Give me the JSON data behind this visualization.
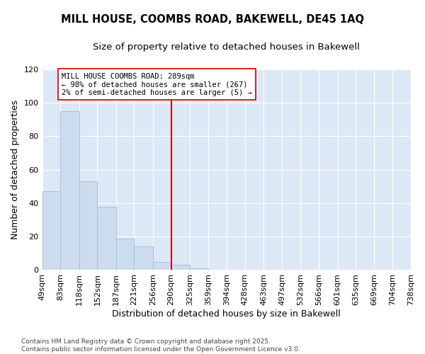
{
  "title": "MILL HOUSE, COOMBS ROAD, BAKEWELL, DE45 1AQ",
  "subtitle": "Size of property relative to detached houses in Bakewell",
  "xlabel": "Distribution of detached houses by size in Bakewell",
  "ylabel": "Number of detached properties",
  "bin_labels": [
    "49sqm",
    "83sqm",
    "118sqm",
    "152sqm",
    "187sqm",
    "221sqm",
    "256sqm",
    "290sqm",
    "325sqm",
    "359sqm",
    "394sqm",
    "428sqm",
    "463sqm",
    "497sqm",
    "532sqm",
    "566sqm",
    "601sqm",
    "635sqm",
    "669sqm",
    "704sqm",
    "738sqm"
  ],
  "bin_edges": [
    49,
    83,
    118,
    152,
    187,
    221,
    256,
    290,
    325,
    359,
    394,
    428,
    463,
    497,
    532,
    566,
    601,
    635,
    669,
    704,
    738
  ],
  "counts": [
    47,
    95,
    53,
    38,
    19,
    14,
    5,
    3,
    1,
    0,
    0,
    0,
    0,
    0,
    0,
    0,
    0,
    0,
    0,
    0
  ],
  "bar_color": "#ccdcee",
  "bar_edge_color": "#a0bcd8",
  "vline_x": 290,
  "vline_color": "#cc0000",
  "ylim": [
    0,
    120
  ],
  "yticks": [
    0,
    20,
    40,
    60,
    80,
    100,
    120
  ],
  "annotation_text": "MILL HOUSE COOMBS ROAD: 289sqm\n← 98% of detached houses are smaller (267)\n2% of semi-detached houses are larger (5) →",
  "annotation_box_color": "#ffffff",
  "annotation_box_edge": "#cc0000",
  "figure_bg": "#ffffff",
  "plot_bg": "#dce8f5",
  "grid_color": "#ffffff",
  "footnote": "Contains HM Land Registry data © Crown copyright and database right 2025.\nContains public sector information licensed under the Open Government Licence v3.0.",
  "title_fontsize": 10.5,
  "subtitle_fontsize": 9.5,
  "xlabel_fontsize": 9,
  "ylabel_fontsize": 9,
  "tick_fontsize": 8,
  "annotation_fontsize": 7.5,
  "footnote_fontsize": 6.5
}
